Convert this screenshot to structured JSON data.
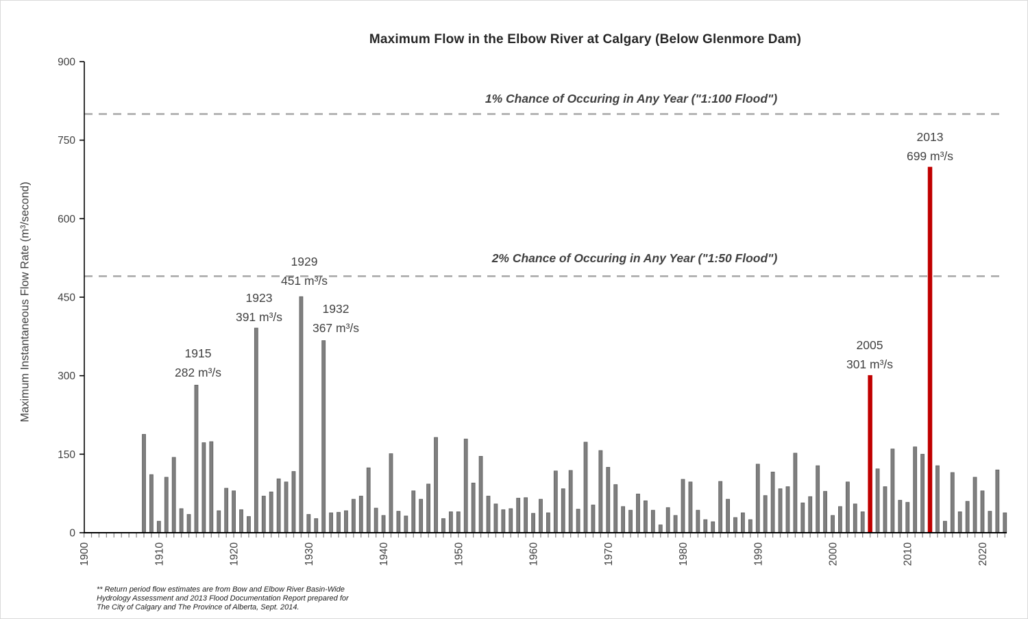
{
  "title": "Maximum Flow in the Elbow River at Calgary (Below Glenmore Dam)",
  "y_axis": {
    "title": "Maximum Instantaneous Flow Rate (m³/second)",
    "ticks": [
      "0",
      "150",
      "300",
      "450",
      "600",
      "750",
      "900"
    ]
  },
  "x_axis": {
    "tick_years": [
      "1900",
      "1910",
      "1920",
      "1930",
      "1940",
      "1950",
      "1960",
      "1970",
      "1980",
      "1990",
      "2000",
      "2010",
      "2020"
    ]
  },
  "footnote_lines": {
    "line1": "**  Return period flow estimates are from Bow and Elbow River Basin-Wide",
    "line2": "Hydrology Assessment and 2013 Flood Documentation Report prepared for",
    "line3": "The City of Calgary and The Province of Alberta, Sept. 2014."
  },
  "colors": {
    "bar": "#7f7f7f",
    "bar_border": "#5f5f5f",
    "highlight": "#c00000",
    "dash_line": "#a6a6a6",
    "axis": "#000000",
    "minor_tick": "#8c8c8c",
    "text": "#404040"
  },
  "chart_data": {
    "type": "bar",
    "title": "Maximum Flow in the Elbow River at Calgary (Below Glenmore Dam)",
    "xlabel": "",
    "ylabel": "Maximum Instantaneous Flow Rate (m³/second)",
    "ylim": [
      0,
      900
    ],
    "y_tick_interval": 150,
    "x_tick_years": [
      1900,
      1910,
      1920,
      1930,
      1940,
      1950,
      1960,
      1970,
      1980,
      1990,
      2000,
      2010,
      2020
    ],
    "grid": false,
    "legend": false,
    "years": [
      1908,
      1909,
      1910,
      1911,
      1912,
      1913,
      1914,
      1915,
      1916,
      1917,
      1918,
      1919,
      1920,
      1921,
      1922,
      1923,
      1924,
      1925,
      1926,
      1927,
      1928,
      1929,
      1930,
      1931,
      1932,
      1933,
      1934,
      1935,
      1936,
      1937,
      1938,
      1939,
      1940,
      1941,
      1942,
      1943,
      1944,
      1945,
      1946,
      1947,
      1948,
      1949,
      1950,
      1951,
      1952,
      1953,
      1954,
      1955,
      1956,
      1957,
      1958,
      1959,
      1960,
      1961,
      1962,
      1963,
      1964,
      1965,
      1966,
      1967,
      1968,
      1969,
      1970,
      1971,
      1972,
      1973,
      1974,
      1975,
      1976,
      1977,
      1978,
      1979,
      1980,
      1981,
      1982,
      1983,
      1984,
      1985,
      1986,
      1987,
      1988,
      1989,
      1990,
      1991,
      1992,
      1993,
      1994,
      1995,
      1996,
      1997,
      1998,
      1999,
      2000,
      2001,
      2002,
      2003,
      2004,
      2005,
      2006,
      2007,
      2008,
      2009,
      2010,
      2011,
      2012,
      2013,
      2014,
      2015,
      2016,
      2017,
      2018,
      2019,
      2020,
      2021,
      2022,
      2023
    ],
    "values": [
      188,
      111,
      22,
      106,
      144,
      46,
      35,
      282,
      172,
      174,
      42,
      85,
      80,
      44,
      31,
      391,
      70,
      78,
      103,
      97,
      117,
      451,
      35,
      27,
      367,
      38,
      39,
      42,
      64,
      70,
      124,
      47,
      33,
      151,
      41,
      32,
      80,
      64,
      93,
      182,
      27,
      40,
      40,
      179,
      95,
      146,
      70,
      55,
      44,
      46,
      66,
      67,
      37,
      64,
      38,
      118,
      84,
      119,
      45,
      173,
      53,
      157,
      125,
      92,
      50,
      43,
      74,
      61,
      43,
      15,
      48,
      33,
      102,
      97,
      43,
      25,
      21,
      98,
      64,
      29,
      38,
      25,
      131,
      71,
      116,
      84,
      88,
      152,
      57,
      69,
      128,
      79,
      33,
      50,
      97,
      55,
      40,
      301,
      122,
      88,
      160,
      62,
      58,
      164,
      150,
      699,
      128,
      22,
      115,
      40,
      60,
      106,
      80,
      41,
      120,
      38
    ],
    "highlight_years": [
      2005,
      2013
    ],
    "reference_lines": [
      {
        "value": 800,
        "label": "1% Chance of Occuring in Any Year (\"1:100 Flood\")"
      },
      {
        "value": 490,
        "label": "2% Chance of Occuring in Any Year (\"1:50 Flood\")"
      }
    ],
    "annotations": [
      {
        "year_label": "1915",
        "value_label": "282 m³/s",
        "year": 1915,
        "value": 282
      },
      {
        "year_label": "1923",
        "value_label": "391 m³/s",
        "year": 1923,
        "value": 391
      },
      {
        "year_label": "1929",
        "value_label": "451 m³/s",
        "year": 1929,
        "value": 451
      },
      {
        "year_label": "1932",
        "value_label": "367 m³/s",
        "year": 1932,
        "value": 367
      },
      {
        "year_label": "2005",
        "value_label": "301 m³/s",
        "year": 2005,
        "value": 301
      },
      {
        "year_label": "2013",
        "value_label": "699 m³/s",
        "year": 2013,
        "value": 699
      }
    ]
  }
}
